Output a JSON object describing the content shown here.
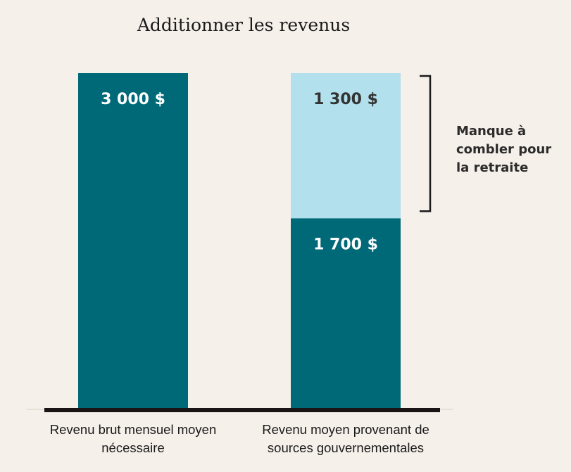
{
  "chart_data": {
    "type": "stacked_bar",
    "title": "Additionner les revenus",
    "categories": [
      "Revenu brut mensuel moyen nécessaire",
      "Revenu moyen provenant de sources gouvernementales"
    ],
    "series": [
      {
        "name": null,
        "color": "#006978",
        "label_color": "#ffffff",
        "values": [
          3000,
          1700
        ],
        "value_labels": [
          "3 000 $",
          "1 700 $"
        ]
      },
      {
        "name": null,
        "color": "#b2e0ec",
        "label_color": "#333333",
        "values": [
          null,
          1300
        ],
        "value_labels": [
          null,
          "1 300 $"
        ]
      }
    ],
    "annotation": "Manque à combler pour la retraite"
  }
}
